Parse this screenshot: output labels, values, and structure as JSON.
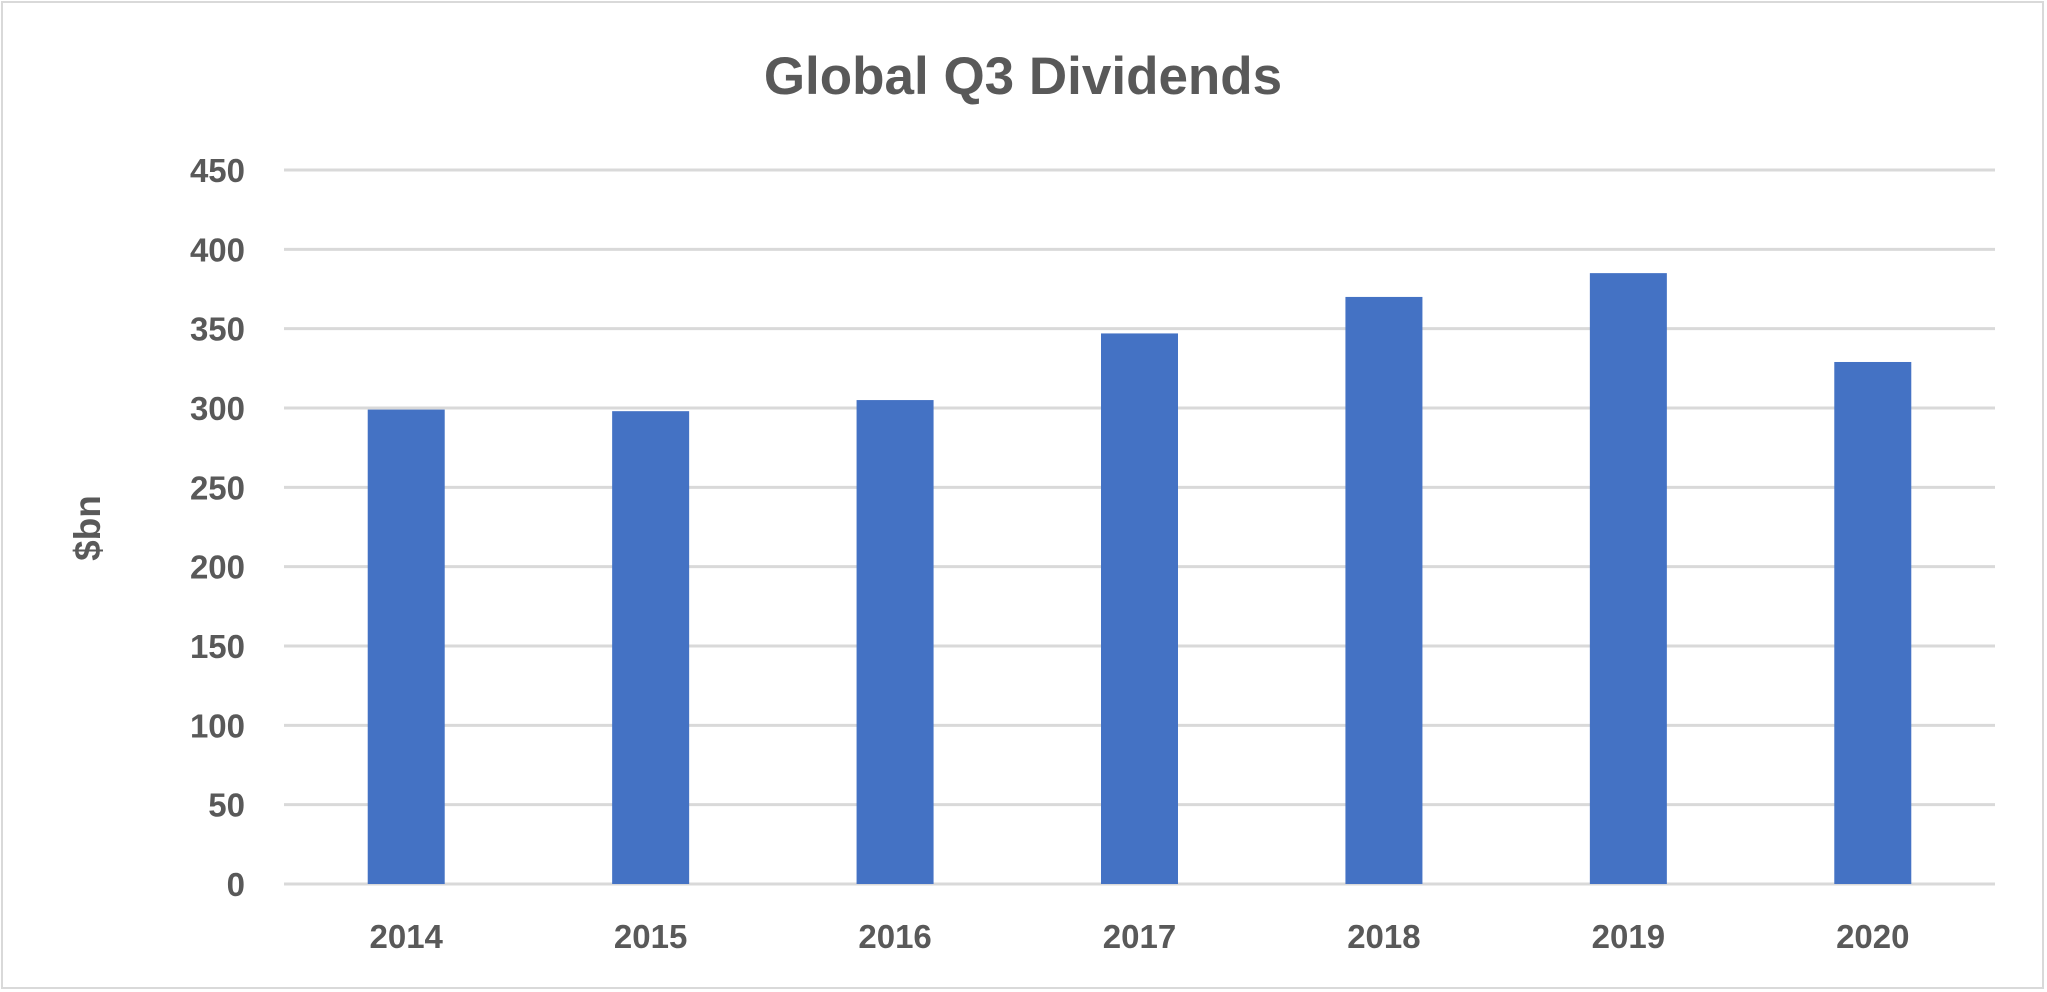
{
  "chart_data": {
    "type": "bar",
    "title": "Global Q3 Dividends",
    "xlabel": "",
    "ylabel": "$bn",
    "categories": [
      "2014",
      "2015",
      "2016",
      "2017",
      "2018",
      "2019",
      "2020"
    ],
    "series": [
      {
        "values": [
          299,
          298,
          305,
          347,
          370,
          385,
          329
        ]
      }
    ],
    "ylim": [
      0,
      450
    ],
    "yticks": [
      0,
      50,
      100,
      150,
      200,
      250,
      300,
      350,
      400,
      450
    ],
    "grid": true,
    "legend": "none",
    "bar_color": "#4472C4"
  }
}
